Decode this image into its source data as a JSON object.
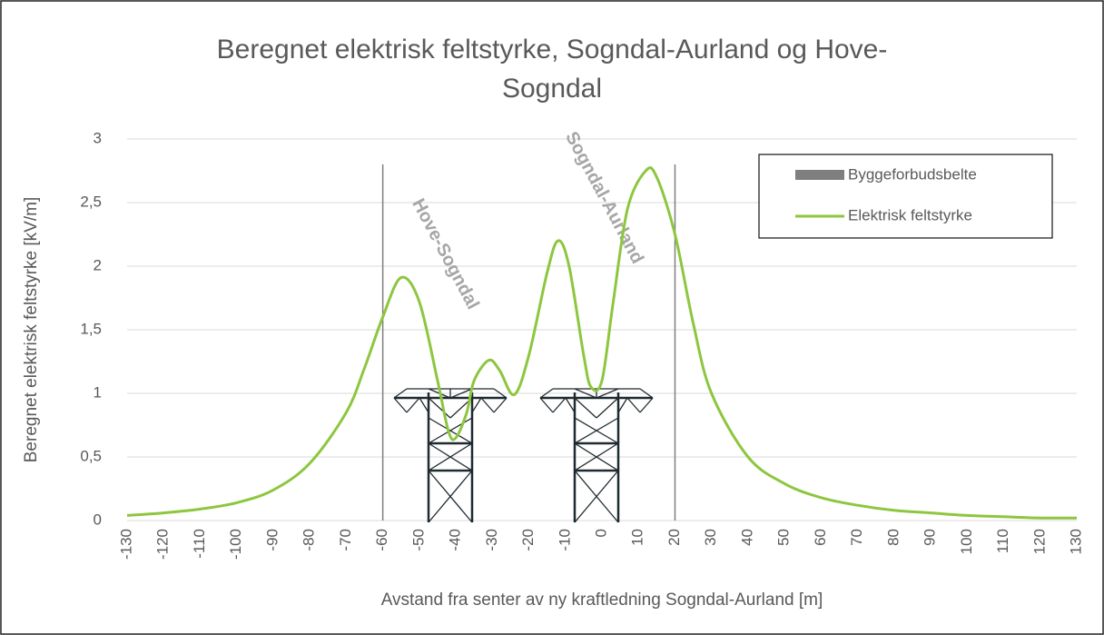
{
  "chart_data": {
    "type": "line",
    "title": [
      "Beregnet elektrisk feltstyrke, Sogndal-Aurland og Hove-",
      "Sogndal"
    ],
    "x_label": "Avstand fra senter av ny kraftledning Sogndal-Aurland [m]",
    "y_label": "Beregnet elektrisk feltstyrke [kV/m]",
    "xlim": [
      -130,
      130
    ],
    "xticks": [
      -130,
      -120,
      -110,
      -100,
      -90,
      -80,
      -70,
      -60,
      -50,
      -40,
      -30,
      -20,
      -10,
      0,
      10,
      20,
      30,
      40,
      50,
      60,
      70,
      80,
      90,
      100,
      110,
      120,
      130
    ],
    "ylim": [
      0,
      3
    ],
    "yticks": [
      0,
      {
        "value": 0.5,
        "label": "0,5"
      },
      1,
      {
        "value": 1.5,
        "label": "1,5"
      },
      2,
      {
        "value": 2.5,
        "label": "2,5"
      },
      3
    ],
    "grid": true,
    "annotations": [
      "Hove-Sogndal",
      "Sogndal-Aurland"
    ],
    "bars": {
      "name": "Byggeforbudsbelte",
      "color": "#7f7f7f",
      "x": [
        -60,
        20
      ],
      "values": [
        2.8,
        2.8
      ]
    },
    "series": [
      {
        "name": "Elektrisk feltstyrke",
        "color": "#8dc63f",
        "x": [
          -130,
          -120,
          -110,
          -100,
          -90,
          -80,
          -70,
          -65,
          -60,
          -55,
          -50,
          -45,
          -42,
          -40,
          -37,
          -35,
          -31,
          -28,
          -24,
          -20,
          -15,
          -12,
          -9,
          -5,
          -3,
          0,
          3,
          7,
          12,
          15,
          20,
          25,
          30,
          40,
          50,
          60,
          70,
          80,
          90,
          100,
          110,
          120,
          130
        ],
        "values": [
          0.04,
          0.06,
          0.09,
          0.14,
          0.24,
          0.45,
          0.85,
          1.2,
          1.6,
          1.91,
          1.72,
          1.1,
          0.7,
          0.65,
          0.85,
          1.1,
          1.26,
          1.18,
          0.99,
          1.3,
          1.95,
          2.2,
          2.0,
          1.3,
          1.05,
          1.1,
          1.7,
          2.45,
          2.75,
          2.7,
          2.25,
          1.55,
          1.0,
          0.5,
          0.29,
          0.18,
          0.12,
          0.08,
          0.06,
          0.04,
          0.03,
          0.02,
          0.02
        ]
      }
    ]
  }
}
